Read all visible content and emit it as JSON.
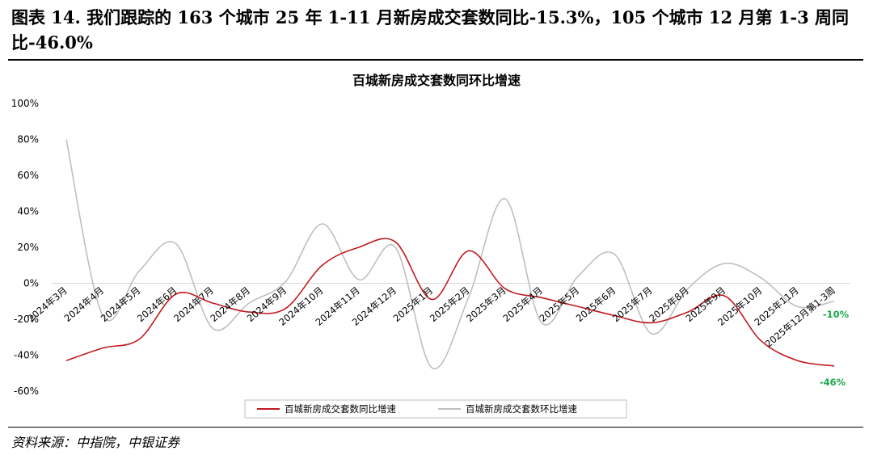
{
  "figure": {
    "title": "图表 14. 我们跟踪的 163 个城市 25 年 1-11 月新房成交套数同比-15.3%，105 个城市 12 月第 1-3 周同比-46.0%",
    "source": "资料来源：中指院，中银证券"
  },
  "chart_data": {
    "type": "line",
    "title": "百城新房成交套数同环比增速",
    "categories": [
      "2024年3月",
      "2024年4月",
      "2024年5月",
      "2024年6月",
      "2024年7月",
      "2024年8月",
      "2024年9月",
      "2024年10月",
      "2024年11月",
      "2024年12月",
      "2025年1月",
      "2025年2月",
      "2025年3月",
      "2025年4月",
      "2025年5月",
      "2025年6月",
      "2025年7月",
      "2025年8月",
      "2025年9月",
      "2025年10月",
      "2025年11月",
      "2025年12月第1-3周"
    ],
    "ylim": [
      -60,
      100
    ],
    "yticks": [
      "100%",
      "80%",
      "60%",
      "40%",
      "20%",
      "0%",
      "-20%",
      "-40%",
      "-60%"
    ],
    "ytick_values": [
      100,
      80,
      60,
      40,
      20,
      0,
      -20,
      -40,
      -60
    ],
    "series": [
      {
        "name": "百城新房成交套数同比增速",
        "color": "#c0191f",
        "values": [
          -43,
          -36,
          -31,
          -6,
          -11,
          -16,
          -14,
          10,
          20,
          23,
          -9,
          18,
          -3,
          -8,
          -13,
          -18,
          -22,
          -16,
          -7,
          -32,
          -43,
          -46
        ]
      },
      {
        "name": "百城新房成交套数环比增速",
        "color": "#bfbfbf",
        "values": [
          80,
          -18,
          7,
          22,
          -25,
          -11,
          1,
          33,
          2,
          20,
          -47,
          -8,
          47,
          -22,
          4,
          16,
          -28,
          -3,
          11,
          3,
          -13,
          -10
        ]
      }
    ],
    "end_labels": [
      "-46%",
      "-10%"
    ],
    "grid": false,
    "zero_line": true,
    "legend_position": "bottom"
  }
}
